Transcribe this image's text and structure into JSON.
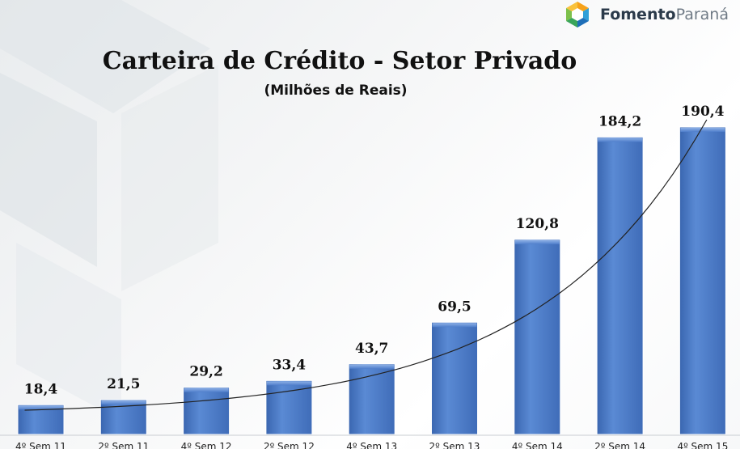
{
  "logo": {
    "text_bold": "Fomento",
    "text_light": "Paraná"
  },
  "chart_data": {
    "type": "bar",
    "title": "Carteira de Crédito - Setor Privado",
    "subtitle": "(Milhões de Reais)",
    "categories": [
      "4º Sem 11",
      "2º Sem 11",
      "4º Sem 12",
      "2º Sem 12",
      "4º Sem 13",
      "2º Sem 13",
      "4º Sem 14",
      "2º Sem 14",
      "4º Sem 15"
    ],
    "values": [
      18.4,
      21.5,
      29.2,
      33.4,
      43.7,
      69.5,
      120.8,
      184.2,
      190.4
    ],
    "value_labels": [
      "18,4",
      "21,5",
      "29,2",
      "33,4",
      "43,7",
      "69,5",
      "120,8",
      "184,2",
      "190,4"
    ],
    "ylim": [
      0,
      195
    ],
    "trendline": "exponential",
    "bar_color": "#4f7ecb",
    "grid": false,
    "legend": "none"
  }
}
